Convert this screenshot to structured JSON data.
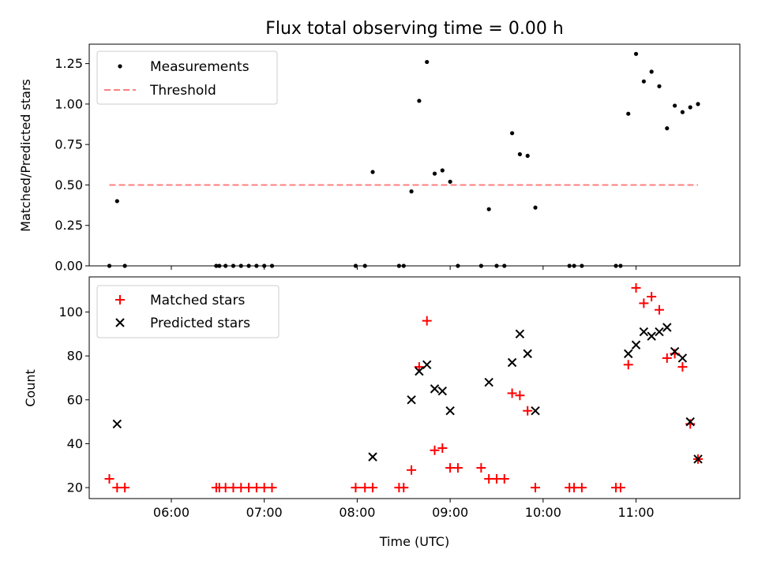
{
  "chart_data": [
    {
      "type": "scatter",
      "title": "Flux total observing time = 0.00 h",
      "xlabel": "",
      "ylabel": "Matched/Predicted stars",
      "x_unit": "time (UTC)",
      "xlim": [
        "05:07",
        "12:07"
      ],
      "ylim": [
        0,
        1.37
      ],
      "yticks": [
        0.0,
        0.25,
        0.5,
        0.75,
        1.0,
        1.25
      ],
      "ytick_labels": [
        "0.00",
        "0.25",
        "0.50",
        "0.75",
        "1.00",
        "1.25"
      ],
      "xticks": [
        "06:00",
        "07:00",
        "08:00",
        "09:00",
        "10:00",
        "11:00"
      ],
      "xtick_labels": [
        "",
        "",
        "",
        "",
        "",
        ""
      ],
      "legend": {
        "position": "top-left",
        "entries": [
          "Measurements",
          "Threshold"
        ]
      },
      "colors": {
        "measurements": "#000000",
        "threshold": "#ff7f7f"
      },
      "series": [
        {
          "name": "Measurements",
          "marker": "dot",
          "points": [
            [
              "05:20",
              0.0
            ],
            [
              "05:25",
              0.4
            ],
            [
              "05:30",
              0.0
            ],
            [
              "06:29",
              0.0
            ],
            [
              "06:31",
              0.0
            ],
            [
              "06:35",
              0.0
            ],
            [
              "06:40",
              0.0
            ],
            [
              "06:45",
              0.0
            ],
            [
              "06:50",
              0.0
            ],
            [
              "06:55",
              0.0
            ],
            [
              "07:00",
              0.0
            ],
            [
              "07:05",
              0.0
            ],
            [
              "07:59",
              0.0
            ],
            [
              "08:05",
              0.0
            ],
            [
              "08:10",
              0.58
            ],
            [
              "08:27",
              0.0
            ],
            [
              "08:30",
              0.0
            ],
            [
              "08:35",
              0.46
            ],
            [
              "08:40",
              1.02
            ],
            [
              "08:45",
              1.26
            ],
            [
              "08:50",
              0.57
            ],
            [
              "08:55",
              0.59
            ],
            [
              "09:00",
              0.52
            ],
            [
              "09:05",
              0.0
            ],
            [
              "09:20",
              0.0
            ],
            [
              "09:25",
              0.35
            ],
            [
              "09:30",
              0.0
            ],
            [
              "09:35",
              0.0
            ],
            [
              "09:40",
              0.82
            ],
            [
              "09:45",
              0.69
            ],
            [
              "09:50",
              0.68
            ],
            [
              "09:55",
              0.36
            ],
            [
              "10:17",
              0.0
            ],
            [
              "10:20",
              0.0
            ],
            [
              "10:25",
              0.0
            ],
            [
              "10:47",
              0.0
            ],
            [
              "10:50",
              0.0
            ],
            [
              "10:55",
              0.94
            ],
            [
              "11:00",
              1.31
            ],
            [
              "11:05",
              1.14
            ],
            [
              "11:10",
              1.2
            ],
            [
              "11:15",
              1.11
            ],
            [
              "11:20",
              0.85
            ],
            [
              "11:25",
              0.99
            ],
            [
              "11:30",
              0.95
            ],
            [
              "11:35",
              0.98
            ],
            [
              "11:40",
              1.0
            ]
          ]
        },
        {
          "name": "Threshold",
          "marker": "dashed-line",
          "points": [
            [
              "05:20",
              0.5
            ],
            [
              "11:40",
              0.5
            ]
          ]
        }
      ]
    },
    {
      "type": "scatter",
      "title": "",
      "xlabel": "Time (UTC)",
      "ylabel": "Count",
      "x_unit": "time (UTC)",
      "xlim": [
        "05:07",
        "12:07"
      ],
      "ylim": [
        15,
        116
      ],
      "yticks": [
        20,
        40,
        60,
        80,
        100
      ],
      "ytick_labels": [
        "20",
        "40",
        "60",
        "80",
        "100"
      ],
      "xticks": [
        "06:00",
        "07:00",
        "08:00",
        "09:00",
        "10:00",
        "11:00"
      ],
      "xtick_labels": [
        "06:00",
        "07:00",
        "08:00",
        "09:00",
        "10:00",
        "11:00"
      ],
      "legend": {
        "position": "top-left",
        "entries": [
          "Matched stars",
          "Predicted stars"
        ]
      },
      "colors": {
        "matched": "#ff0000",
        "predicted": "#000000"
      },
      "series": [
        {
          "name": "Matched stars",
          "marker": "plus",
          "points": [
            [
              "05:20",
              24
            ],
            [
              "05:25",
              20
            ],
            [
              "05:30",
              20
            ],
            [
              "06:29",
              20
            ],
            [
              "06:31",
              20
            ],
            [
              "06:35",
              20
            ],
            [
              "06:40",
              20
            ],
            [
              "06:45",
              20
            ],
            [
              "06:50",
              20
            ],
            [
              "06:55",
              20
            ],
            [
              "07:00",
              20
            ],
            [
              "07:05",
              20
            ],
            [
              "07:59",
              20
            ],
            [
              "08:05",
              20
            ],
            [
              "08:10",
              20
            ],
            [
              "08:27",
              20
            ],
            [
              "08:30",
              20
            ],
            [
              "08:35",
              28
            ],
            [
              "08:40",
              75
            ],
            [
              "08:45",
              96
            ],
            [
              "08:50",
              37
            ],
            [
              "08:55",
              38
            ],
            [
              "09:00",
              29
            ],
            [
              "09:05",
              29
            ],
            [
              "09:20",
              29
            ],
            [
              "09:25",
              24
            ],
            [
              "09:30",
              24
            ],
            [
              "09:35",
              24
            ],
            [
              "09:40",
              63
            ],
            [
              "09:45",
              62
            ],
            [
              "09:50",
              55
            ],
            [
              "09:55",
              20
            ],
            [
              "10:17",
              20
            ],
            [
              "10:20",
              20
            ],
            [
              "10:25",
              20
            ],
            [
              "10:47",
              20
            ],
            [
              "10:50",
              20
            ],
            [
              "10:55",
              76
            ],
            [
              "11:00",
              111
            ],
            [
              "11:05",
              104
            ],
            [
              "11:10",
              107
            ],
            [
              "11:15",
              101
            ],
            [
              "11:20",
              79
            ],
            [
              "11:25",
              81
            ],
            [
              "11:30",
              75
            ],
            [
              "11:35",
              49
            ],
            [
              "11:40",
              33
            ]
          ]
        },
        {
          "name": "Predicted stars",
          "marker": "x",
          "points": [
            [
              "05:25",
              49
            ],
            [
              "08:10",
              34
            ],
            [
              "08:35",
              60
            ],
            [
              "08:40",
              73
            ],
            [
              "08:45",
              76
            ],
            [
              "08:50",
              65
            ],
            [
              "08:55",
              64
            ],
            [
              "09:00",
              55
            ],
            [
              "09:25",
              68
            ],
            [
              "09:40",
              77
            ],
            [
              "09:45",
              90
            ],
            [
              "09:50",
              81
            ],
            [
              "09:55",
              55
            ],
            [
              "10:55",
              81
            ],
            [
              "11:00",
              85
            ],
            [
              "11:05",
              91
            ],
            [
              "11:10",
              89
            ],
            [
              "11:15",
              91
            ],
            [
              "11:20",
              93
            ],
            [
              "11:25",
              82
            ],
            [
              "11:30",
              79
            ],
            [
              "11:35",
              50
            ],
            [
              "11:40",
              33
            ]
          ]
        }
      ]
    }
  ]
}
